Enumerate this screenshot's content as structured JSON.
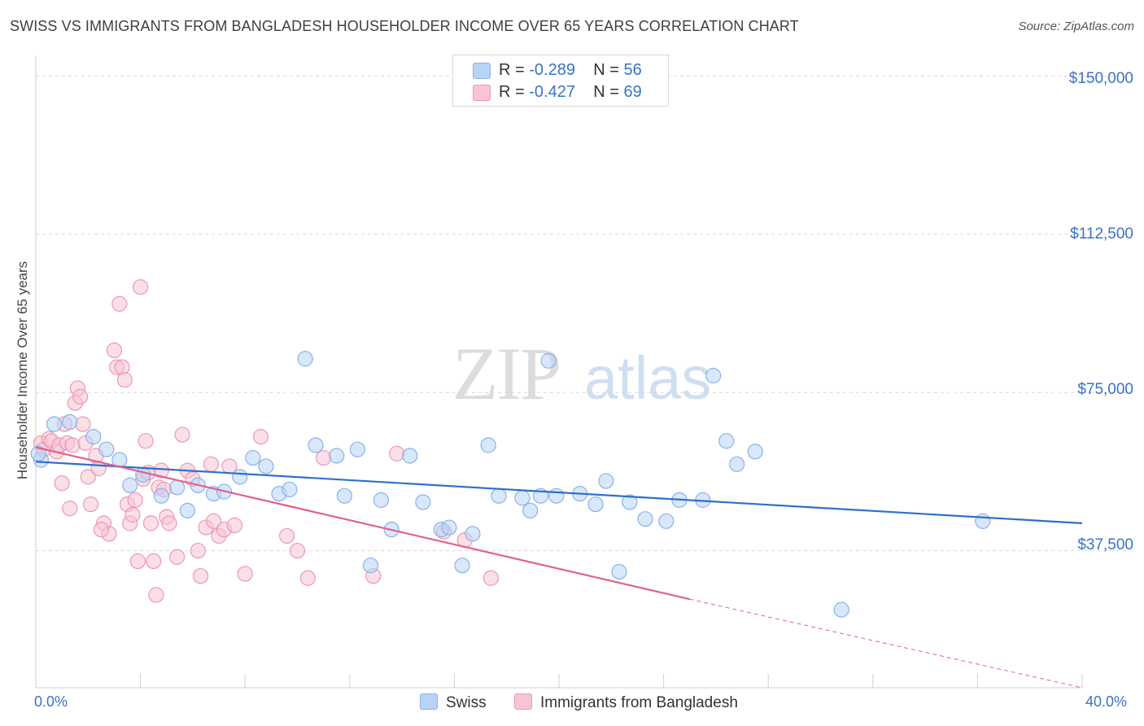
{
  "title": "SWISS VS IMMIGRANTS FROM BANGLADESH HOUSEHOLDER INCOME OVER 65 YEARS CORRELATION CHART",
  "source": "Source: ZipAtlas.com",
  "watermark": "ZIPatlas",
  "colors": {
    "swiss_fill": "#b8d3f5",
    "swiss_stroke": "#8ab2e8",
    "swiss_line": "#2e6fcc",
    "bangla_fill": "#f8c4d4",
    "bangla_stroke": "#ec97b3",
    "bangla_line": "#e0628f",
    "axis_text": "#3a72c6",
    "grid": "#d8d8d8"
  },
  "stats": {
    "swiss": {
      "r_label": "R = ",
      "r": "-0.289",
      "n_label": "N = ",
      "n": "56"
    },
    "bangla": {
      "r_label": "R = ",
      "r": "-0.427",
      "n_label": "N = ",
      "n": "69"
    }
  },
  "chart_data": {
    "type": "scatter",
    "title": "SWISS VS IMMIGRANTS FROM BANGLADESH HOUSEHOLDER INCOME OVER 65 YEARS CORRELATION CHART",
    "xlabel": "",
    "ylabel": "Householder Income Over 65 years",
    "xlim": [
      0,
      40
    ],
    "ylim": [
      5000,
      155000
    ],
    "x_tick_labels": [
      "0.0%",
      "40.0%"
    ],
    "y_tick_labels": [
      "$37,500",
      "$75,000",
      "$112,500",
      "$150,000"
    ],
    "y_ticks": [
      37500,
      75000,
      112500,
      150000
    ],
    "grid": true,
    "legend_position": "bottom-center",
    "series": [
      {
        "name": "Swiss",
        "trend": {
          "x": [
            0,
            40
          ],
          "y": [
            58600,
            44000
          ]
        },
        "points": [
          [
            0.2,
            59000
          ],
          [
            0.7,
            67500
          ],
          [
            1.3,
            68000
          ],
          [
            2.2,
            64500
          ],
          [
            2.7,
            61500
          ],
          [
            3.2,
            59000
          ],
          [
            3.6,
            53000
          ],
          [
            4.1,
            55500
          ],
          [
            4.8,
            50500
          ],
          [
            5.4,
            52500
          ],
          [
            5.8,
            47000
          ],
          [
            6.2,
            53000
          ],
          [
            6.8,
            51000
          ],
          [
            7.2,
            51500
          ],
          [
            7.8,
            55000
          ],
          [
            8.3,
            59500
          ],
          [
            8.8,
            57500
          ],
          [
            9.3,
            51000
          ],
          [
            9.7,
            52000
          ],
          [
            10.3,
            83000
          ],
          [
            10.7,
            62500
          ],
          [
            11.5,
            60000
          ],
          [
            11.8,
            50500
          ],
          [
            12.3,
            61500
          ],
          [
            12.8,
            34000
          ],
          [
            13.2,
            49500
          ],
          [
            13.6,
            42500
          ],
          [
            14.3,
            60000
          ],
          [
            14.8,
            49000
          ],
          [
            15.5,
            42500
          ],
          [
            15.8,
            43000
          ],
          [
            16.3,
            34000
          ],
          [
            16.7,
            41500
          ],
          [
            17.3,
            62500
          ],
          [
            17.7,
            50500
          ],
          [
            18.6,
            50000
          ],
          [
            18.9,
            47000
          ],
          [
            19.3,
            50500
          ],
          [
            19.6,
            82500
          ],
          [
            19.9,
            50500
          ],
          [
            20.8,
            51000
          ],
          [
            21.4,
            48500
          ],
          [
            21.8,
            54000
          ],
          [
            22.3,
            32500
          ],
          [
            22.7,
            49000
          ],
          [
            23.3,
            45000
          ],
          [
            24.1,
            44500
          ],
          [
            24.6,
            49500
          ],
          [
            25.5,
            49500
          ],
          [
            25.9,
            79000
          ],
          [
            26.4,
            63500
          ],
          [
            26.8,
            58000
          ],
          [
            27.5,
            61000
          ],
          [
            30.8,
            23500
          ],
          [
            36.2,
            44500
          ],
          [
            0.1,
            60500
          ]
        ]
      },
      {
        "name": "Immigrants from Bangladesh",
        "trend": {
          "x": [
            0,
            25
          ],
          "y": [
            62000,
            26000
          ]
        },
        "trend_dashed": {
          "x": [
            25,
            40
          ],
          "y": [
            26000,
            5000
          ]
        },
        "points": [
          [
            0.2,
            63000
          ],
          [
            0.3,
            61500
          ],
          [
            0.5,
            64000
          ],
          [
            0.6,
            63500
          ],
          [
            0.8,
            61000
          ],
          [
            0.9,
            62500
          ],
          [
            1.1,
            67500
          ],
          [
            1.2,
            63000
          ],
          [
            1.4,
            62500
          ],
          [
            1.5,
            72500
          ],
          [
            1.6,
            76000
          ],
          [
            1.7,
            74000
          ],
          [
            1.8,
            67500
          ],
          [
            1.9,
            63000
          ],
          [
            2.0,
            55000
          ],
          [
            2.1,
            48500
          ],
          [
            2.3,
            60000
          ],
          [
            2.4,
            57000
          ],
          [
            2.6,
            44000
          ],
          [
            2.8,
            41500
          ],
          [
            3.0,
            85000
          ],
          [
            3.1,
            81000
          ],
          [
            3.2,
            96000
          ],
          [
            3.3,
            81000
          ],
          [
            3.4,
            78000
          ],
          [
            3.5,
            48500
          ],
          [
            3.6,
            44000
          ],
          [
            3.7,
            46000
          ],
          [
            3.8,
            49500
          ],
          [
            3.9,
            35000
          ],
          [
            4.0,
            100000
          ],
          [
            4.1,
            54500
          ],
          [
            4.2,
            63500
          ],
          [
            4.3,
            56000
          ],
          [
            4.4,
            44000
          ],
          [
            4.5,
            35000
          ],
          [
            4.6,
            27000
          ],
          [
            4.7,
            52500
          ],
          [
            4.8,
            56500
          ],
          [
            4.9,
            52000
          ],
          [
            5.0,
            45500
          ],
          [
            5.1,
            44000
          ],
          [
            5.4,
            36000
          ],
          [
            5.6,
            65000
          ],
          [
            5.8,
            56500
          ],
          [
            6.0,
            54500
          ],
          [
            6.2,
            37500
          ],
          [
            6.3,
            31500
          ],
          [
            6.5,
            43000
          ],
          [
            6.7,
            58000
          ],
          [
            6.8,
            44500
          ],
          [
            7.0,
            41000
          ],
          [
            7.2,
            42500
          ],
          [
            7.4,
            57500
          ],
          [
            7.6,
            43500
          ],
          [
            8.0,
            32000
          ],
          [
            8.6,
            64500
          ],
          [
            9.6,
            41000
          ],
          [
            10.0,
            37500
          ],
          [
            10.4,
            31000
          ],
          [
            11.0,
            59500
          ],
          [
            12.9,
            31500
          ],
          [
            13.8,
            60500
          ],
          [
            15.6,
            42000
          ],
          [
            16.4,
            40000
          ],
          [
            17.4,
            31000
          ],
          [
            1.0,
            53500
          ],
          [
            1.3,
            47500
          ],
          [
            2.5,
            42500
          ]
        ]
      }
    ]
  },
  "legend": {
    "swiss": "Swiss",
    "bangla": "Immigrants from Bangladesh"
  }
}
